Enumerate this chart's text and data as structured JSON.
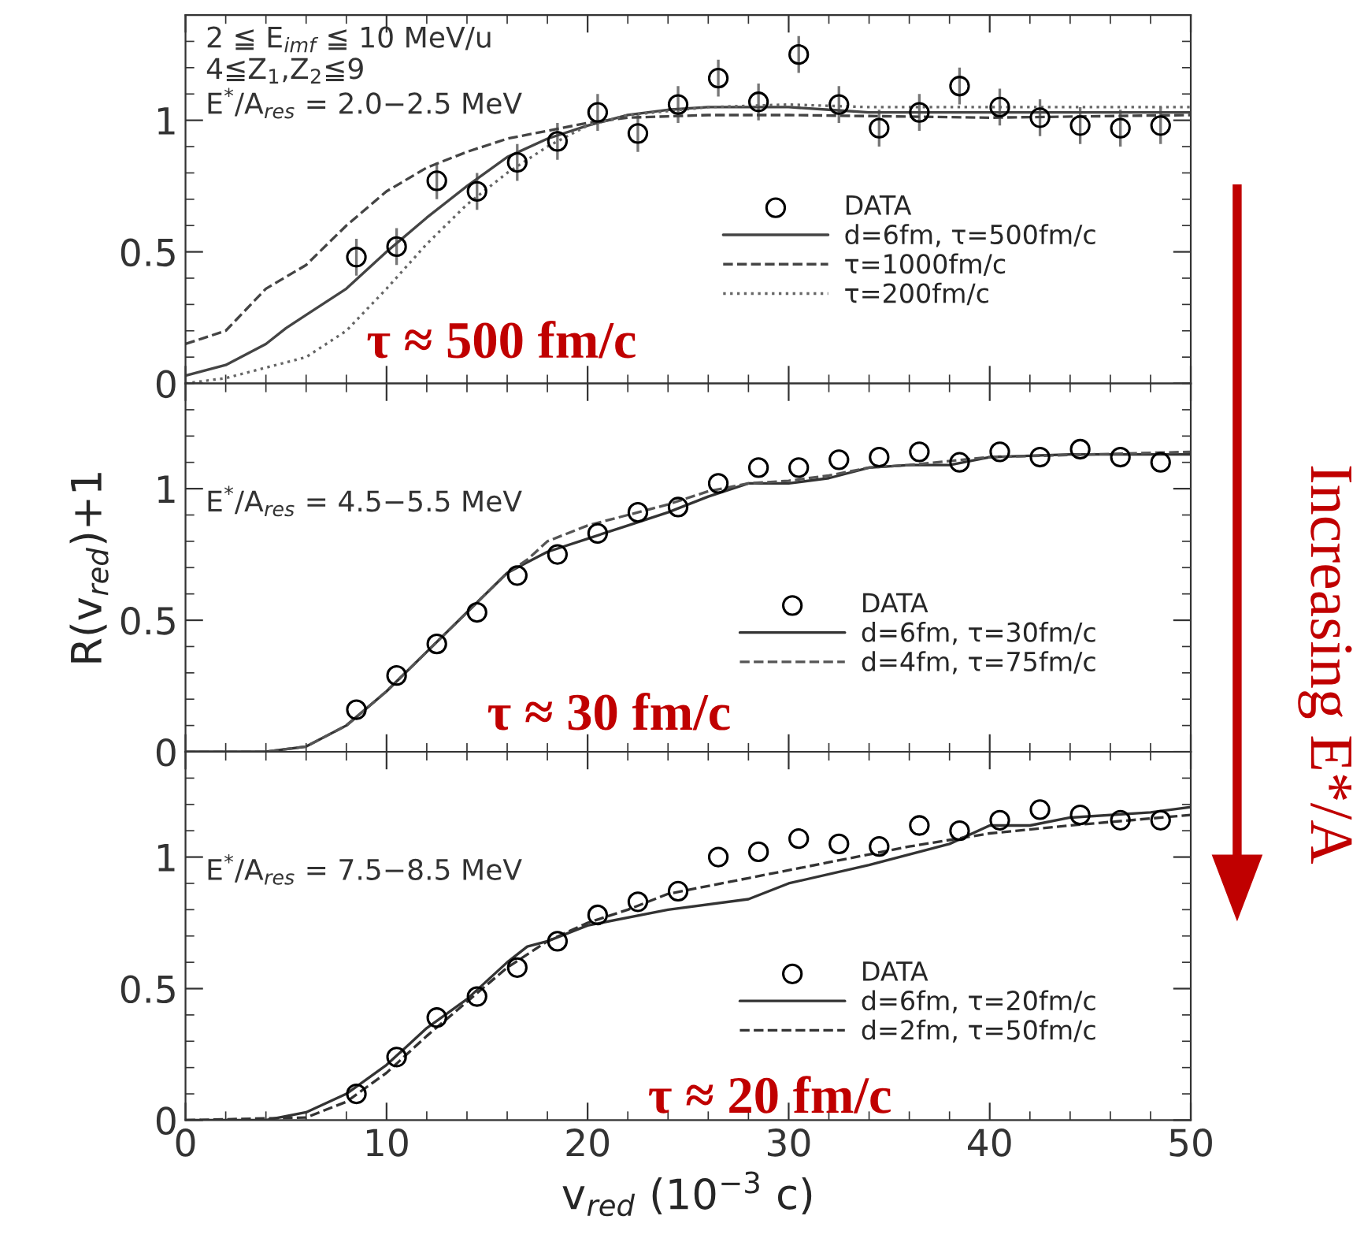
{
  "chart_data": [
    {
      "type": "line",
      "annotations": [
        "2 ≦ E$_{imf}$ ≦ 10 MeV/u",
        "4≦Z$_{1}$,Z$_{2}$≦9",
        "E$^{*}$/A$_{res}$ = 2.0−2.5 MeV",
        "τ ≈ 500 fm/c",
        "Increasing E*/A"
      ],
      "xlim": [
        0,
        50
      ],
      "ylim": [
        0,
        1.4
      ],
      "xticks": [
        0,
        10,
        20,
        30,
        40,
        50
      ],
      "yticks": [
        0,
        0.5,
        1
      ],
      "tick_labels": "y",
      "legend": "lower right",
      "grid": false,
      "series": [
        {
          "name": "DATA",
          "type": "scatter",
          "marker": "circle",
          "color": "#000000",
          "x": [
            8.5,
            10.5,
            12.5,
            14.5,
            16.5,
            18.5,
            20.5,
            22.5,
            24.5,
            26.5,
            28.5,
            30.5,
            32.5,
            34.5,
            36.5,
            38.5,
            40.5,
            42.5,
            44.5,
            46.5,
            48.5
          ],
          "values": [
            0.48,
            0.52,
            0.77,
            0.73,
            0.84,
            0.92,
            1.03,
            0.95,
            1.06,
            1.16,
            1.07,
            1.25,
            1.06,
            0.97,
            1.03,
            1.13,
            1.05,
            1.01,
            0.98,
            0.97,
            0.98
          ],
          "errors": [
            0.07,
            0.07,
            0.07,
            0.07,
            0.07,
            0.07,
            0.07,
            0.07,
            0.07,
            0.07,
            0.07,
            0.07,
            0.07,
            0.07,
            0.07,
            0.07,
            0.07,
            0.07,
            0.07,
            0.07,
            0.07
          ]
        },
        {
          "name": "d=6fm, τ=500fm/c",
          "line_style": "solid",
          "color": "#444444",
          "x": [
            0,
            2,
            4,
            5,
            6,
            8,
            10,
            12,
            14,
            16,
            18,
            20,
            22,
            24,
            26,
            28,
            30,
            32,
            34,
            36,
            40,
            44,
            50
          ],
          "values": [
            0.03,
            0.07,
            0.15,
            0.21,
            0.26,
            0.36,
            0.5,
            0.63,
            0.75,
            0.86,
            0.93,
            0.98,
            1.02,
            1.04,
            1.05,
            1.05,
            1.05,
            1.04,
            1.03,
            1.03,
            1.03,
            1.03,
            1.03
          ]
        },
        {
          "name": "τ=1000fm/c",
          "line_style": "dashed",
          "color": "#444444",
          "x": [
            0,
            2,
            4,
            6,
            8,
            10,
            12,
            14,
            16,
            18,
            20,
            22,
            26,
            30,
            40,
            50
          ],
          "values": [
            0.15,
            0.2,
            0.36,
            0.45,
            0.6,
            0.73,
            0.82,
            0.88,
            0.93,
            0.96,
            0.99,
            1.01,
            1.02,
            1.02,
            1.01,
            1.02
          ]
        },
        {
          "name": "τ=200fm/c",
          "line_style": "dotted",
          "color": "#666666",
          "x": [
            0,
            2,
            4,
            6,
            8,
            10,
            12,
            14,
            16,
            18,
            20,
            22,
            26,
            30,
            34,
            40,
            50
          ],
          "values": [
            0,
            0.02,
            0.06,
            0.1,
            0.2,
            0.36,
            0.53,
            0.68,
            0.8,
            0.9,
            0.98,
            1.02,
            1.05,
            1.06,
            1.05,
            1.05,
            1.05
          ]
        }
      ]
    },
    {
      "type": "line",
      "annotations": [
        "E$^{*}$/A$_{res}$ = 4.5−5.5 MeV",
        "τ ≈ 30 fm/c"
      ],
      "ylabel": "R(v$_{red}$)+1",
      "xlim": [
        0,
        50
      ],
      "ylim": [
        0,
        1.4
      ],
      "xticks": [
        0,
        10,
        20,
        30,
        40,
        50
      ],
      "yticks": [
        0,
        0.5,
        1
      ],
      "tick_labels": "y",
      "legend": "lower right",
      "grid": false,
      "series": [
        {
          "name": "DATA",
          "type": "scatter",
          "marker": "circle",
          "color": "#000000",
          "x": [
            8.5,
            10.5,
            12.5,
            14.5,
            16.5,
            18.5,
            20.5,
            22.5,
            24.5,
            26.5,
            28.5,
            30.5,
            32.5,
            34.5,
            36.5,
            38.5,
            40.5,
            42.5,
            44.5,
            46.5,
            48.5
          ],
          "values": [
            0.16,
            0.29,
            0.41,
            0.53,
            0.67,
            0.75,
            0.83,
            0.91,
            0.93,
            1.02,
            1.08,
            1.08,
            1.11,
            1.12,
            1.14,
            1.1,
            1.14,
            1.12,
            1.15,
            1.12,
            1.1
          ]
        },
        {
          "name": "d=6fm, τ=30fm/c",
          "line_style": "solid",
          "color": "#333333",
          "x": [
            0,
            4,
            6,
            8,
            10,
            12,
            14,
            16,
            17,
            18,
            20,
            22,
            24,
            26,
            28,
            30,
            32,
            34,
            36,
            38,
            40,
            44,
            50
          ],
          "values": [
            0,
            0,
            0.02,
            0.1,
            0.23,
            0.38,
            0.53,
            0.68,
            0.72,
            0.76,
            0.81,
            0.86,
            0.91,
            0.97,
            1.02,
            1.02,
            1.04,
            1.08,
            1.09,
            1.09,
            1.12,
            1.13,
            1.13
          ]
        },
        {
          "name": "d=4fm, τ=75fm/c",
          "line_style": "dashed",
          "color": "#555555",
          "x": [
            0,
            4,
            6,
            8,
            10,
            12,
            14,
            16,
            17,
            18,
            20,
            22,
            24,
            26,
            28,
            30,
            32,
            34,
            36,
            40,
            50
          ],
          "values": [
            0,
            0,
            0.02,
            0.1,
            0.23,
            0.38,
            0.53,
            0.68,
            0.73,
            0.8,
            0.86,
            0.9,
            0.94,
            0.99,
            1.02,
            1.03,
            1.05,
            1.08,
            1.09,
            1.12,
            1.14
          ]
        }
      ]
    },
    {
      "type": "line",
      "annotations": [
        "E$^{*}$/A$_{res}$ = 7.5−8.5 MeV",
        "τ ≈ 20 fm/c"
      ],
      "xlabel": "v$_{red}$ (10$^{−3}$ c)",
      "xlim": [
        0,
        50
      ],
      "ylim": [
        0,
        1.4
      ],
      "xticks": [
        0,
        10,
        20,
        30,
        40,
        50
      ],
      "yticks": [
        0,
        0.5,
        1
      ],
      "legend": "lower right",
      "grid": false,
      "series": [
        {
          "name": "DATA",
          "type": "scatter",
          "marker": "circle",
          "color": "#000000",
          "x": [
            8.5,
            10.5,
            12.5,
            14.5,
            16.5,
            18.5,
            20.5,
            22.5,
            24.5,
            26.5,
            28.5,
            30.5,
            32.5,
            34.5,
            36.5,
            38.5,
            40.5,
            42.5,
            44.5,
            46.5,
            48.5
          ],
          "values": [
            0.1,
            0.24,
            0.39,
            0.47,
            0.58,
            0.68,
            0.78,
            0.83,
            0.87,
            1.0,
            1.02,
            1.07,
            1.05,
            1.04,
            1.12,
            1.1,
            1.14,
            1.18,
            1.16,
            1.14,
            1.14
          ]
        },
        {
          "name": "d=6fm, τ=20fm/c",
          "line_style": "solid",
          "color": "#333333",
          "x": [
            0,
            4,
            6,
            8,
            10,
            12,
            14,
            16,
            17,
            18,
            20,
            24,
            28,
            30,
            34,
            38,
            40,
            42,
            44,
            48,
            50
          ],
          "values": [
            0,
            0,
            0.03,
            0.1,
            0.21,
            0.35,
            0.46,
            0.6,
            0.66,
            0.68,
            0.74,
            0.8,
            0.84,
            0.9,
            0.97,
            1.05,
            1.12,
            1.12,
            1.15,
            1.17,
            1.19
          ]
        },
        {
          "name": "d=2fm, τ=50fm/c",
          "line_style": "dashed",
          "color": "#333333",
          "x": [
            0,
            6,
            8,
            10,
            12,
            14,
            16,
            18,
            20,
            22,
            24,
            28,
            32,
            36,
            40,
            44,
            50
          ],
          "values": [
            0,
            0.01,
            0.07,
            0.18,
            0.32,
            0.45,
            0.58,
            0.68,
            0.75,
            0.8,
            0.86,
            0.92,
            0.98,
            1.04,
            1.09,
            1.12,
            1.16
          ]
        }
      ]
    }
  ]
}
